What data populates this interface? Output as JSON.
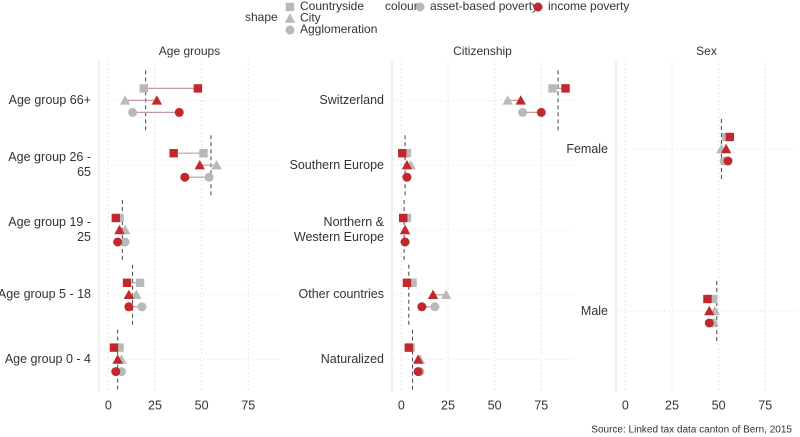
{
  "legend": {
    "shape_title": "shape",
    "shapes": [
      "Countryside",
      "City",
      "Agglomeration"
    ],
    "colour_title": "colour",
    "colours": [
      {
        "name": "asset-based poverty",
        "color": "#b9b9b9"
      },
      {
        "name": "income poverty",
        "color": "#c0282d"
      }
    ]
  },
  "chart_data": [
    {
      "type": "dot",
      "title": "Age groups",
      "categories": [
        "Age group 66+",
        "Age group 26 - 65",
        "Age group 19 - 25",
        "Age group 5 - 18",
        "Age group 0 - 4"
      ],
      "reference": [
        20,
        55,
        7.5,
        13,
        5
      ],
      "xlim": [
        -5,
        92
      ],
      "xticks": [
        0,
        25,
        50,
        75
      ],
      "grid": true,
      "series": [
        {
          "shape": "Countryside",
          "colour": "asset-based poverty",
          "values": [
            19,
            51,
            6,
            17,
            6
          ]
        },
        {
          "shape": "Countryside",
          "colour": "income poverty",
          "values": [
            48,
            35,
            4,
            10,
            3
          ]
        },
        {
          "shape": "City",
          "colour": "asset-based poverty",
          "values": [
            9,
            58,
            9,
            15,
            7
          ]
        },
        {
          "shape": "City",
          "colour": "income poverty",
          "values": [
            26,
            49,
            6,
            11,
            5
          ]
        },
        {
          "shape": "Agglomeration",
          "colour": "asset-based poverty",
          "values": [
            13,
            54,
            9,
            18,
            7
          ]
        },
        {
          "shape": "Agglomeration",
          "colour": "income poverty",
          "values": [
            38,
            41,
            5,
            11,
            4
          ]
        }
      ]
    },
    {
      "type": "dot",
      "title": "Citizenship",
      "categories": [
        "Switzerland",
        "Southern Europe",
        "Northern & Western Europe",
        "Other countries",
        "Naturalized"
      ],
      "reference": [
        84,
        2,
        1.5,
        4,
        6
      ],
      "xlim": [
        -5,
        92
      ],
      "xticks": [
        0,
        25,
        50,
        75
      ],
      "grid": true,
      "series": [
        {
          "shape": "Countryside",
          "colour": "asset-based poverty",
          "values": [
            81,
            3,
            3,
            6,
            5
          ]
        },
        {
          "shape": "Countryside",
          "colour": "income poverty",
          "values": [
            88,
            0.5,
            1,
            3,
            4
          ]
        },
        {
          "shape": "City",
          "colour": "asset-based poverty",
          "values": [
            57,
            5,
            2,
            24,
            10
          ]
        },
        {
          "shape": "City",
          "colour": "income poverty",
          "values": [
            64,
            3,
            2,
            17,
            9
          ]
        },
        {
          "shape": "Agglomeration",
          "colour": "asset-based poverty",
          "values": [
            65,
            3,
            2,
            18,
            10
          ]
        },
        {
          "shape": "Agglomeration",
          "colour": "income poverty",
          "values": [
            75,
            3,
            2,
            11,
            9
          ]
        }
      ]
    },
    {
      "type": "dot",
      "title": "Sex",
      "categories": [
        "Female",
        "Male"
      ],
      "reference": [
        51.5,
        49
      ],
      "xlim": [
        -5,
        92
      ],
      "xticks": [
        0,
        25,
        50,
        75
      ],
      "grid": true,
      "series": [
        {
          "shape": "Countryside",
          "colour": "asset-based poverty",
          "values": [
            54,
            47
          ]
        },
        {
          "shape": "Countryside",
          "colour": "income poverty",
          "values": [
            56,
            44
          ]
        },
        {
          "shape": "City",
          "colour": "asset-based poverty",
          "values": [
            51.5,
            48
          ]
        },
        {
          "shape": "City",
          "colour": "income poverty",
          "values": [
            54,
            45
          ]
        },
        {
          "shape": "Agglomeration",
          "colour": "asset-based poverty",
          "values": [
            53,
            47
          ]
        },
        {
          "shape": "Agglomeration",
          "colour": "income poverty",
          "values": [
            55,
            45
          ]
        }
      ]
    }
  ],
  "source": "Source: Linked tax data canton of Bern, 2015"
}
